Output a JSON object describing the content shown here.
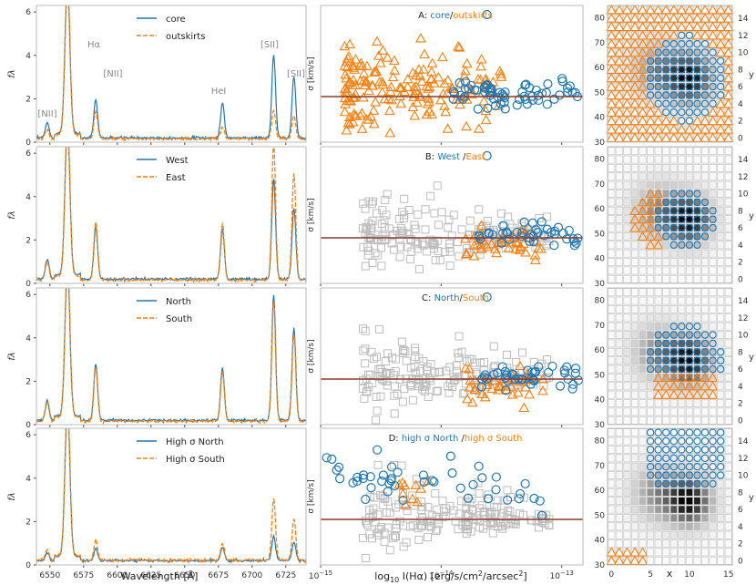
{
  "figure": {
    "bottom_labels": {
      "spectra_xlabel": "Wavelength [Å]",
      "scatter_xlabel": "log",
      "scatter_xlabel_sub": "10",
      "scatter_xlabel_rest": " I(Hα) [erg/s/cm",
      "scatter_xlabel_sup": "2",
      "scatter_xlabel_end": "/arcsec",
      "scatter_xlabel_sup2": "2",
      "scatter_xlabel_close": "]",
      "map_xlabel": "x"
    },
    "colors": {
      "blue": "#1f77b4",
      "orange": "#ff7f0e",
      "gray": "#bdbdbd",
      "sigma_line": "#8b3a2f",
      "axis": "#444444"
    }
  },
  "chart_data": [
    {
      "type": "line",
      "panel": "spectra",
      "title": "",
      "xlabel": "Wavelength [Å]",
      "ylabel": "f_λ",
      "xlim": [
        6540,
        6740
      ],
      "ylim": [
        0,
        6.3
      ],
      "xticks": [
        "6550",
        "6575",
        "6600",
        "6625",
        "6650",
        "6675",
        "6700",
        "6725"
      ],
      "yticks": [
        "0",
        "2",
        "4",
        "6"
      ],
      "line_labels": [
        "[NII]",
        "Hα",
        "[NII]",
        "HeI",
        "[SII]",
        "[SII]"
      ],
      "rows": [
        {
          "legend": [
            "core",
            "outskirts"
          ],
          "series": [
            {
              "name": "core",
              "continuum": 0.2,
              "peaks": [
                {
                  "x": 6548,
                  "h": 0.7
                },
                {
                  "x": 6563,
                  "h": 7.0
                },
                {
                  "x": 6584,
                  "h": 1.75
                },
                {
                  "x": 6678,
                  "h": 1.6
                },
                {
                  "x": 6716,
                  "h": 3.8
                },
                {
                  "x": 6731,
                  "h": 2.8
                }
              ]
            },
            {
              "name": "outskirts",
              "continuum": 0.15,
              "peaks": [
                {
                  "x": 6548,
                  "h": 0.45
                },
                {
                  "x": 6563,
                  "h": 7.0
                },
                {
                  "x": 6584,
                  "h": 1.25
                },
                {
                  "x": 6678,
                  "h": 0.55
                },
                {
                  "x": 6716,
                  "h": 1.3
                },
                {
                  "x": 6731,
                  "h": 1.1
                }
              ]
            }
          ]
        },
        {
          "legend": [
            "West",
            "East"
          ],
          "series": [
            {
              "name": "West",
              "continuum": 0.2,
              "peaks": [
                {
                  "x": 6548,
                  "h": 0.9
                },
                {
                  "x": 6563,
                  "h": 7.0
                },
                {
                  "x": 6584,
                  "h": 2.4
                },
                {
                  "x": 6678,
                  "h": 2.3
                },
                {
                  "x": 6716,
                  "h": 4.6
                },
                {
                  "x": 6731,
                  "h": 3.3
                }
              ]
            },
            {
              "name": "East",
              "continuum": 0.15,
              "peaks": [
                {
                  "x": 6548,
                  "h": 0.85
                },
                {
                  "x": 6563,
                  "h": 7.0
                },
                {
                  "x": 6584,
                  "h": 2.7
                },
                {
                  "x": 6678,
                  "h": 2.6
                },
                {
                  "x": 6716,
                  "h": 6.3
                },
                {
                  "x": 6731,
                  "h": 4.9
                }
              ]
            }
          ]
        },
        {
          "legend": [
            "North",
            "South"
          ],
          "series": [
            {
              "name": "North",
              "continuum": 0.2,
              "peaks": [
                {
                  "x": 6548,
                  "h": 0.9
                },
                {
                  "x": 6563,
                  "h": 7.0
                },
                {
                  "x": 6584,
                  "h": 2.6
                },
                {
                  "x": 6678,
                  "h": 2.4
                },
                {
                  "x": 6716,
                  "h": 5.8
                },
                {
                  "x": 6731,
                  "h": 4.3
                }
              ]
            },
            {
              "name": "South",
              "continuum": 0.15,
              "peaks": [
                {
                  "x": 6548,
                  "h": 0.9
                },
                {
                  "x": 6563,
                  "h": 7.0
                },
                {
                  "x": 6584,
                  "h": 2.5
                },
                {
                  "x": 6678,
                  "h": 2.3
                },
                {
                  "x": 6716,
                  "h": 5.5
                },
                {
                  "x": 6731,
                  "h": 4.0
                }
              ]
            }
          ]
        },
        {
          "legend": [
            "High σ North",
            "High σ South"
          ],
          "series": [
            {
              "name": "High σ North",
              "continuum": 0.2,
              "peaks": [
                {
                  "x": 6548,
                  "h": 0.35
                },
                {
                  "x": 6563,
                  "h": 7.0
                },
                {
                  "x": 6584,
                  "h": 0.55
                },
                {
                  "x": 6678,
                  "h": 0.6
                },
                {
                  "x": 6716,
                  "h": 1.1
                },
                {
                  "x": 6731,
                  "h": 0.85
                }
              ]
            },
            {
              "name": "High σ South",
              "continuum": 0.22,
              "peaks": [
                {
                  "x": 6548,
                  "h": 0.5
                },
                {
                  "x": 6563,
                  "h": 7.0
                },
                {
                  "x": 6584,
                  "h": 0.9
                },
                {
                  "x": 6678,
                  "h": 0.75
                },
                {
                  "x": 6716,
                  "h": 2.8
                },
                {
                  "x": 6731,
                  "h": 1.9
                }
              ]
            }
          ]
        }
      ]
    },
    {
      "type": "scatter",
      "panel": "dispersion",
      "ylabel": "σ [km/s]",
      "xscale": "log",
      "xlim": [
        1e-15,
        1.5e-13
      ],
      "ylim": [
        0,
        150
      ],
      "xticks": [
        "10",
        "10",
        "10"
      ],
      "xtick_exp": [
        "−15",
        "−14",
        "−13"
      ],
      "horizontal_line": 50,
      "rows": [
        {
          "title_prefix": "A: ",
          "title_blue": "core",
          "title_sep": "/",
          "title_orange": "outskirts",
          "gray": false,
          "orange_n": 170,
          "blue_n": 65,
          "outlier": 140
        },
        {
          "title_prefix": "B: ",
          "title_blue": "West ",
          "title_sep": "/",
          "title_orange": "East",
          "gray": true,
          "orange_n": 42,
          "blue_n": 40,
          "outlier": 140
        },
        {
          "title_prefix": "C: ",
          "title_blue": "North",
          "title_sep": "/",
          "title_orange": "South",
          "gray": true,
          "orange_n": 40,
          "blue_n": 40,
          "outlier": 140
        },
        {
          "title_prefix": "D: ",
          "title_blue": "high σ North ",
          "title_sep": "/",
          "title_orange": "high σ South",
          "gray": true,
          "orange_n": 10,
          "blue_n": 45,
          "outlier": null
        }
      ]
    },
    {
      "type": "heatmap",
      "panel": "spatial-map",
      "xlabel": "x",
      "ylabel": "y",
      "xlim": [
        0,
        16
      ],
      "ylim": [
        0,
        16
      ],
      "xticks": [
        "0",
        "5",
        "10",
        "15"
      ],
      "y_right_ticks": [
        "0",
        "2",
        "4",
        "6",
        "8",
        "10",
        "12",
        "14"
      ],
      "y_left_ticks": [
        "30",
        "40",
        "50",
        "60",
        "70",
        "80"
      ],
      "peak": [
        10,
        7
      ],
      "rows": [
        {
          "mask": "A"
        },
        {
          "mask": "B"
        },
        {
          "mask": "C"
        },
        {
          "mask": "D"
        }
      ]
    }
  ]
}
